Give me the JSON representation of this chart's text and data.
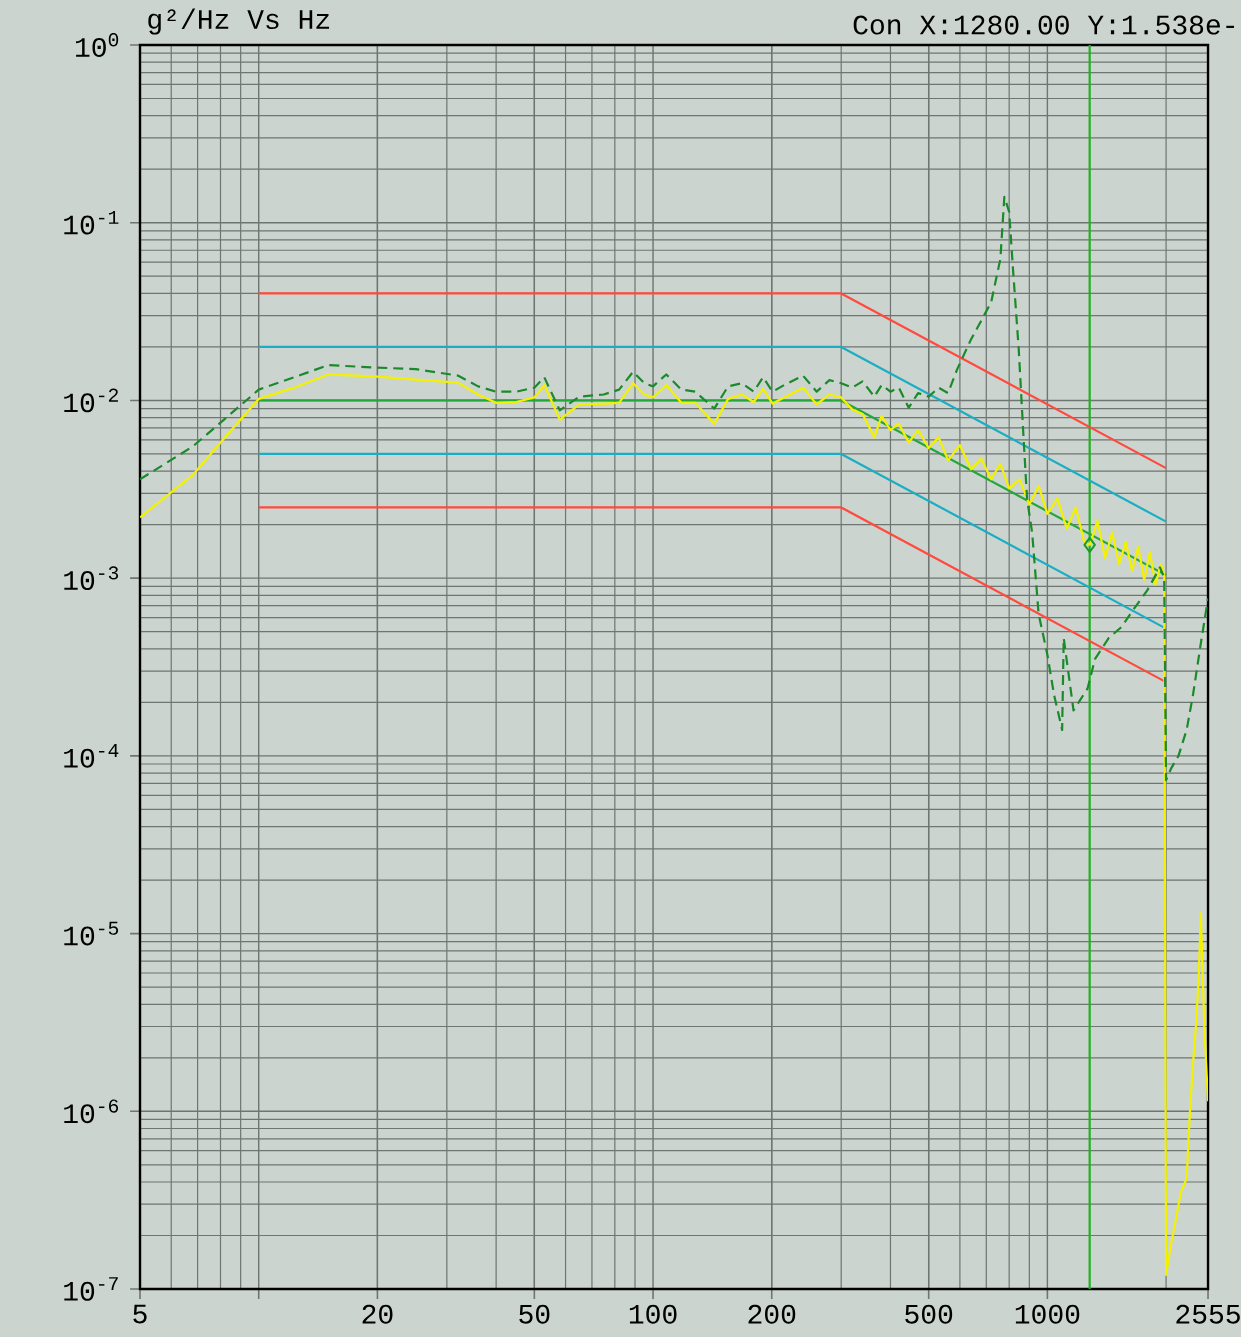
{
  "chart_data": {
    "type": "line",
    "title": "g²/Hz Vs Hz",
    "annotations": [
      "Con X:1280.00 Y:1.538e-"
    ],
    "log": "xy",
    "grid": true,
    "xlim": [
      5,
      2555
    ],
    "ylim": [
      1e-07,
      1
    ],
    "xticks": [
      5,
      {
        "value": 10,
        "label": null
      },
      20,
      50,
      100,
      200,
      500,
      1000,
      2555
    ],
    "yticks": [
      {
        "value": 1,
        "label": "10$^{0}$"
      },
      {
        "value": 0.1,
        "label": "10$^{-1}$"
      },
      {
        "value": 0.01,
        "label": "10$^{-2}$"
      },
      {
        "value": 0.001,
        "label": "10$^{-3}$"
      },
      {
        "value": 0.0001,
        "label": "10$^{-4}$"
      },
      {
        "value": 1e-05,
        "label": "10$^{-5}$"
      },
      {
        "value": 1e-06,
        "label": "10$^{-6}$"
      },
      {
        "value": 1e-07,
        "label": "10$^{-7}$"
      }
    ],
    "ref_lines": [
      {
        "axis": "x",
        "value": 1280,
        "color": "#22b022"
      }
    ],
    "series": [
      {
        "color": "#ff4a3d",
        "x": [
          10,
          300,
          2000
        ],
        "values": [
          0.04,
          0.04,
          0.00416
        ]
      },
      {
        "color": "#1aaec4",
        "x": [
          10,
          300,
          2000
        ],
        "values": [
          0.02,
          0.02,
          0.00208
        ]
      },
      {
        "color": "#22a83a",
        "x": [
          10,
          300,
          2000
        ],
        "values": [
          0.01,
          0.01,
          0.00104
        ]
      },
      {
        "color": "#1aaec4",
        "x": [
          10,
          300,
          2000
        ],
        "values": [
          0.005,
          0.005,
          0.00052
        ]
      },
      {
        "color": "#ff4a3d",
        "x": [
          10,
          300,
          2000
        ],
        "values": [
          0.0025,
          0.0025,
          0.00026
        ]
      },
      {
        "color": "#f2f200",
        "x": [
          5,
          6.8,
          8,
          10,
          12.3,
          15,
          20,
          25,
          32,
          36,
          40,
          45,
          50,
          53,
          58,
          65,
          75,
          82,
          89,
          95,
          100,
          108,
          118,
          128,
          143,
          155,
          168,
          180,
          190,
          201,
          215,
          240,
          260,
          280,
          300,
          320,
          340,
          364,
          380,
          400,
          420,
          445,
          470,
          500,
          530,
          560,
          600,
          640,
          680,
          720,
          760,
          800,
          850,
          900,
          950,
          1000,
          1060,
          1120,
          1180,
          1240,
          1280,
          1340,
          1400,
          1460,
          1520,
          1580,
          1640,
          1700,
          1760,
          1820,
          1880,
          1940,
          1978,
          2000,
          2060,
          2120,
          2180,
          2255,
          2295,
          2340,
          2380,
          2420,
          2450,
          2500,
          2555
        ],
        "values": [
          0.0022,
          0.0038,
          0.0058,
          0.0102,
          0.0118,
          0.014,
          0.0136,
          0.0131,
          0.0126,
          0.0108,
          0.0097,
          0.0098,
          0.0104,
          0.0122,
          0.0078,
          0.0095,
          0.0096,
          0.0097,
          0.0125,
          0.0108,
          0.0104,
          0.0122,
          0.0097,
          0.0097,
          0.0074,
          0.0102,
          0.0108,
          0.0098,
          0.0116,
          0.0096,
          0.0104,
          0.0118,
          0.0095,
          0.0108,
          0.0104,
          0.0089,
          0.0084,
          0.0062,
          0.0082,
          0.0068,
          0.0074,
          0.0058,
          0.0068,
          0.0054,
          0.0062,
          0.0046,
          0.0056,
          0.0041,
          0.0047,
          0.0036,
          0.0044,
          0.0032,
          0.0036,
          0.0026,
          0.0033,
          0.0023,
          0.0028,
          0.0019,
          0.0025,
          0.0016,
          0.00154,
          0.0021,
          0.0013,
          0.0018,
          0.0012,
          0.0016,
          0.0011,
          0.0015,
          0.00098,
          0.0014,
          0.00092,
          0.0012,
          0.00105,
          1.2e-07,
          1.8e-07,
          2.5e-07,
          3.5e-07,
          4.2e-07,
          9.3e-07,
          1.85e-06,
          3e-06,
          5.7e-06,
          1.3e-05,
          3e-06,
          1.14e-06
        ]
      },
      {
        "color": "#1a8a2a",
        "line_style": "dashed",
        "x": [
          5,
          6.8,
          8,
          10,
          12.3,
          15,
          20,
          25,
          32,
          36,
          40,
          45,
          50,
          53,
          58,
          65,
          75,
          82,
          89,
          95,
          100,
          108,
          118,
          128,
          143,
          155,
          168,
          180,
          190,
          201,
          215,
          240,
          260,
          280,
          300,
          320,
          340,
          364,
          380,
          400,
          420,
          445,
          470,
          500,
          530,
          560,
          590,
          640,
          720,
          760,
          778,
          800,
          818,
          846,
          870,
          888,
          915,
          950,
          1000,
          1040,
          1090,
          1100,
          1165,
          1265,
          1320,
          1430,
          1540,
          1640,
          1790,
          1930,
          1978,
          2000,
          2060,
          2150,
          2255,
          2340,
          2450,
          2555
        ],
        "values": [
          0.0036,
          0.0055,
          0.0075,
          0.0115,
          0.0135,
          0.0158,
          0.0153,
          0.015,
          0.0138,
          0.012,
          0.0112,
          0.0112,
          0.0118,
          0.0135,
          0.0088,
          0.0105,
          0.0108,
          0.0115,
          0.0145,
          0.0125,
          0.012,
          0.014,
          0.0115,
          0.0112,
          0.009,
          0.012,
          0.0125,
          0.0112,
          0.0135,
          0.0112,
          0.0122,
          0.0138,
          0.0112,
          0.013,
          0.0125,
          0.0118,
          0.0128,
          0.0105,
          0.0122,
          0.0112,
          0.0118,
          0.0091,
          0.011,
          0.0105,
          0.0118,
          0.011,
          0.0149,
          0.022,
          0.0356,
          0.0625,
          0.14,
          0.115,
          0.055,
          0.0194,
          0.0062,
          0.0028,
          0.0018,
          0.00063,
          0.00037,
          0.00022,
          0.00014,
          0.00046,
          0.00018,
          0.00024,
          0.00035,
          0.00046,
          0.00053,
          0.00065,
          0.00085,
          0.00115,
          0.00101,
          7.3e-05,
          8.5e-05,
          0.0001,
          0.00014,
          0.00022,
          0.00043,
          0.00077
        ]
      },
      {
        "type": "scatter",
        "marker": "diamond",
        "color": "#1a9a2a",
        "x": [
          1280
        ],
        "values": [
          0.001538
        ]
      }
    ]
  }
}
